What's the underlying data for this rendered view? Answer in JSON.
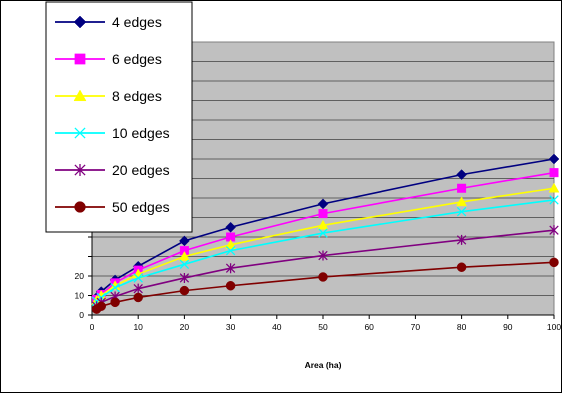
{
  "chart_data": {
    "type": "line",
    "xlabel": "Area (ha)",
    "ylabel": "",
    "xlim": [
      0,
      100
    ],
    "ylim": [
      0,
      140
    ],
    "xticks": [
      "0",
      "10",
      "20",
      "30",
      "40",
      "50",
      "60",
      "70",
      "80",
      "90",
      "100"
    ],
    "yticks": [
      "0",
      "10",
      "20"
    ],
    "grid": "horizontal",
    "plot_background": "#c0c0c0",
    "legend_position": "top-left",
    "series": [
      {
        "name": "4 edges",
        "color": "#000080",
        "marker": "diamond",
        "x": [
          1,
          2,
          5,
          10,
          20,
          30,
          50,
          80,
          100
        ],
        "y": [
          9,
          12,
          18,
          25,
          38,
          45,
          57,
          72,
          80
        ]
      },
      {
        "name": "6 edges",
        "color": "#ff00ff",
        "marker": "square",
        "x": [
          1,
          2,
          5,
          10,
          20,
          30,
          50,
          80,
          100
        ],
        "y": [
          8,
          10.5,
          16.5,
          23,
          33,
          40,
          52,
          65,
          73
        ]
      },
      {
        "name": "8 edges",
        "color": "#ffff00",
        "marker": "triangle",
        "x": [
          1,
          2,
          5,
          10,
          20,
          30,
          50,
          80,
          100
        ],
        "y": [
          7.5,
          10,
          15,
          21,
          30,
          36,
          46,
          58,
          65
        ]
      },
      {
        "name": "10 edges",
        "color": "#00ffff",
        "marker": "x",
        "x": [
          1,
          2,
          5,
          10,
          20,
          30,
          50,
          80,
          100
        ],
        "y": [
          7,
          9,
          14,
          19,
          26,
          33,
          42,
          53,
          59
        ]
      },
      {
        "name": "20 edges",
        "color": "#800080",
        "marker": "star",
        "x": [
          1,
          2,
          5,
          10,
          20,
          30,
          50,
          80,
          100
        ],
        "y": [
          4.5,
          6.5,
          9.5,
          13.5,
          19,
          24,
          30.5,
          38.5,
          43.5
        ]
      },
      {
        "name": "50 edges",
        "color": "#800000",
        "marker": "circle",
        "x": [
          1,
          2,
          5,
          10,
          20,
          30,
          50,
          80,
          100
        ],
        "y": [
          3,
          4.5,
          6.5,
          9,
          12.5,
          15,
          19.5,
          24.5,
          27
        ]
      }
    ]
  }
}
